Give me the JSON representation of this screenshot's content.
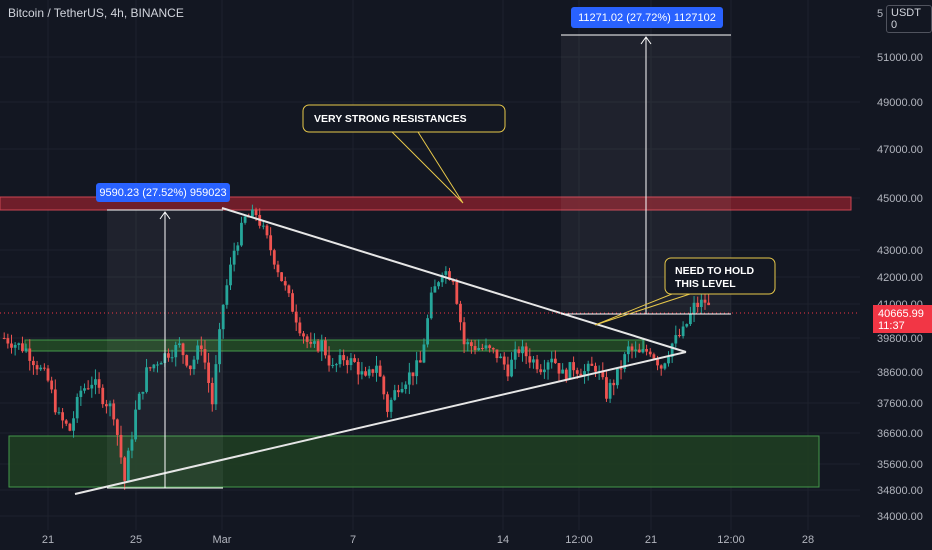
{
  "header": {
    "symbol_title": "Bitcoin / TetherUS, 4h, BINANCE",
    "top_partial_price": "5",
    "currency": "USDT",
    "currency_mark": "0"
  },
  "price_axis": {
    "labels": [
      "51000.00",
      "49000.00",
      "47000.00",
      "45000.00",
      "43000.00",
      "42000.00",
      "41000.00",
      "39800.00",
      "38600.00",
      "37600.00",
      "36600.00",
      "35600.00",
      "34800.00",
      "34000.00"
    ]
  },
  "time_axis": {
    "labels": [
      "21",
      "25",
      "Mar",
      "7",
      "14",
      "12:00",
      "21",
      "12:00",
      "28"
    ]
  },
  "current_price": {
    "value": "40665.99",
    "countdown": "11:37"
  },
  "annotations": {
    "resistance_note": "VERY STRONG RESISTANCES",
    "hold_note_line1": "NEED TO HOLD",
    "hold_note_line2": "THIS LEVEL"
  },
  "measurements": {
    "left": "9590.23 (27.52%) 959023",
    "right": "11271.02 (27.72%) 1127102"
  },
  "colors": {
    "background": "#131722",
    "up": "#26a69a",
    "down": "#ef5350",
    "resistance_zone": "#8b1f2a",
    "support_zone": "#2e5e2e",
    "note_border": "#e7c84a",
    "measure_label": "#2962ff",
    "price_tag": "#f23645"
  },
  "chart_data": {
    "type": "candlestick",
    "title": "Bitcoin / TetherUS, 4h, BINANCE",
    "xlabel": "",
    "ylabel": "",
    "ylim": [
      34000,
      52000
    ],
    "x_ticks": [
      "21",
      "25",
      "Mar",
      "7",
      "14",
      "12:00",
      "21",
      "12:00",
      "28"
    ],
    "close_path": [
      [
        19,
        39800
      ],
      [
        20,
        39400
      ],
      [
        21,
        38300
      ],
      [
        21.5,
        37100
      ],
      [
        22,
        36700
      ],
      [
        22.5,
        38000
      ],
      [
        23,
        38300
      ],
      [
        23.5,
        37800
      ],
      [
        24,
        37300
      ],
      [
        24.5,
        35100
      ],
      [
        25,
        37300
      ],
      [
        25.5,
        38600
      ],
      [
        26,
        39000
      ],
      [
        26.5,
        39300
      ],
      [
        27,
        39500
      ],
      [
        27.5,
        38800
      ],
      [
        28,
        39600
      ],
      [
        28.5,
        37600
      ],
      [
        29,
        41000
      ],
      [
        29.5,
        43000
      ],
      [
        30,
        44200
      ],
      [
        30.5,
        44400
      ],
      [
        31,
        43400
      ],
      [
        31.5,
        42300
      ],
      [
        32,
        41200
      ],
      [
        32.5,
        40200
      ],
      [
        33,
        39400
      ],
      [
        33.5,
        39600
      ],
      [
        34,
        38700
      ],
      [
        34.5,
        39100
      ],
      [
        35,
        38900
      ],
      [
        35.5,
        38300
      ],
      [
        36,
        38900
      ],
      [
        36.5,
        37400
      ],
      [
        37,
        38200
      ],
      [
        37.5,
        38500
      ],
      [
        38,
        38900
      ],
      [
        38.5,
        41200
      ],
      [
        39,
        42300
      ],
      [
        39.5,
        42000
      ],
      [
        40,
        39600
      ],
      [
        40.5,
        39500
      ],
      [
        41,
        39400
      ],
      [
        41.5,
        39200
      ],
      [
        42,
        38700
      ],
      [
        42.5,
        39400
      ],
      [
        43,
        39100
      ],
      [
        43.5,
        38800
      ],
      [
        44,
        39200
      ],
      [
        44.5,
        38500
      ],
      [
        45,
        38800
      ],
      [
        45.5,
        38600
      ],
      [
        46,
        38800
      ],
      [
        46.5,
        37900
      ],
      [
        47,
        38500
      ],
      [
        47.5,
        39400
      ],
      [
        48,
        39200
      ],
      [
        48.5,
        39400
      ],
      [
        49,
        38800
      ],
      [
        49.5,
        39600
      ],
      [
        50,
        40000
      ],
      [
        50.5,
        40900
      ],
      [
        51,
        41100
      ],
      [
        51.3,
        40666
      ]
    ],
    "series": [
      {
        "name": "",
        "type": "trendline",
        "points": [
          [
            24,
            34800
          ],
          [
            30.5,
            44600
          ],
          [
            39.5,
            42700
          ],
          [
            53.5,
            39800
          ]
        ]
      },
      {
        "name": "",
        "type": "trendline",
        "points": [
          [
            47,
            37600
          ],
          [
            53.5,
            39800
          ]
        ]
      }
    ],
    "zones": [
      {
        "kind": "resistance",
        "from": 44600,
        "to": 45200
      },
      {
        "kind": "support",
        "from": 39500,
        "to": 39900
      },
      {
        "kind": "support",
        "from": 34800,
        "to": 36500
      }
    ],
    "measures": [
      {
        "from": 34800,
        "to": 44600,
        "label": "9590.23 (27.52%) 959023"
      },
      {
        "from": 40666,
        "to": 51900,
        "label": "11271.02 (27.72%) 1127102"
      }
    ],
    "current_price": 40665.99
  }
}
